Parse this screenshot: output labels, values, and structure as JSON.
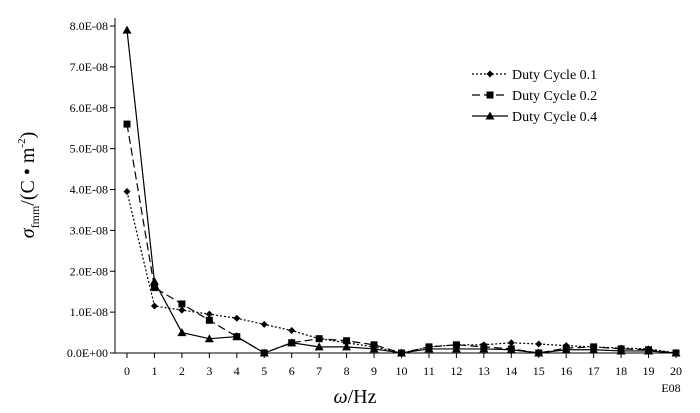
{
  "chart_data": {
    "type": "line",
    "x": [
      0,
      1,
      2,
      3,
      4,
      5,
      6,
      7,
      8,
      9,
      10,
      11,
      12,
      13,
      14,
      15,
      16,
      17,
      18,
      19,
      20
    ],
    "x_tick_labels": [
      "0",
      "1",
      "2",
      "3",
      "4",
      "5",
      "6",
      "7",
      "8",
      "9",
      "10",
      "11",
      "12",
      "13",
      "14",
      "15",
      "16",
      "17",
      "18",
      "19",
      "20"
    ],
    "x_multiplier_label": "E08",
    "xlabel": {
      "symbol": "ω",
      "unit": "/Hz"
    },
    "ylabel": {
      "symbol": "σ",
      "subscript": "fmm",
      "unit": "/(C • m",
      "superscript": "-2",
      "close": ")"
    },
    "ylim": [
      0,
      8e-08
    ],
    "y_ticks": [
      0,
      1e-08,
      2e-08,
      3e-08,
      4e-08,
      5e-08,
      6e-08,
      7e-08,
      8e-08
    ],
    "y_tick_labels": [
      "0.0E+00",
      "1.0E-08",
      "2.0E-08",
      "3.0E-08",
      "4.0E-08",
      "5.0E-08",
      "6.0E-08",
      "7.0E-08",
      "8.0E-08"
    ],
    "legend_position": "top-right",
    "series": [
      {
        "name": "Duty Cycle 0.1",
        "line_style": "dotted",
        "marker": "diamond",
        "values": [
          3.95e-08,
          1.15e-08,
          1.05e-08,
          9.5e-09,
          8.5e-09,
          7e-09,
          5.5e-09,
          3.5e-09,
          2.5e-09,
          1.5e-09,
          0.0,
          1.5e-09,
          2e-09,
          2e-09,
          2.5e-09,
          2.2e-09,
          1.8e-09,
          1.5e-09,
          1.2e-09,
          1e-09,
          0.0
        ]
      },
      {
        "name": "Duty Cycle 0.2",
        "line_style": "dashed",
        "marker": "square",
        "values": [
          5.6e-08,
          1.6e-08,
          1.2e-08,
          8e-09,
          4e-09,
          0.0,
          2.5e-09,
          3.5e-09,
          3e-09,
          2e-09,
          0.0,
          1.5e-09,
          2e-09,
          1.5e-09,
          1e-09,
          0.0,
          1.2e-09,
          1.5e-09,
          1e-09,
          8e-10,
          0.0
        ]
      },
      {
        "name": "Duty Cycle 0.4",
        "line_style": "solid",
        "marker": "triangle",
        "values": [
          7.9e-08,
          1.75e-08,
          5e-09,
          3.5e-09,
          4e-09,
          0.0,
          2.5e-09,
          1.5e-09,
          1.5e-09,
          1e-09,
          0.0,
          1e-09,
          1e-09,
          1e-09,
          8e-10,
          0.0,
          8e-10,
          8e-10,
          5e-10,
          5e-10,
          0.0
        ]
      }
    ]
  }
}
